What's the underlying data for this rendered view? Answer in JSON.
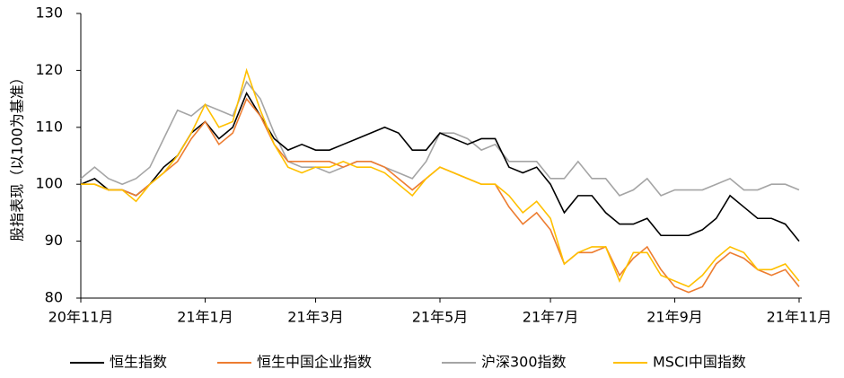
{
  "chart_data": {
    "type": "line",
    "y_label": "股指表现（以100为基准）",
    "categories": [
      "20年11月",
      null,
      null,
      null,
      null,
      null,
      null,
      null,
      null,
      "21年1月",
      null,
      null,
      null,
      null,
      null,
      null,
      null,
      "21年3月",
      null,
      null,
      null,
      null,
      null,
      null,
      null,
      null,
      "21年5月",
      null,
      null,
      null,
      null,
      null,
      null,
      null,
      "21年7月",
      null,
      null,
      null,
      null,
      null,
      null,
      null,
      null,
      "21年9月",
      null,
      null,
      null,
      null,
      null,
      null,
      null,
      null,
      "21年11月"
    ],
    "series": [
      {
        "name": "恒生指数",
        "color": "#000000",
        "values": [
          100,
          101,
          99,
          99,
          98,
          100,
          103,
          105,
          109,
          111,
          108,
          110,
          116,
          112,
          108,
          106,
          107,
          106,
          106,
          107,
          108,
          109,
          110,
          109,
          106,
          106,
          109,
          108,
          107,
          108,
          108,
          103,
          102,
          103,
          100,
          95,
          98,
          98,
          95,
          93,
          93,
          94,
          91,
          91,
          91,
          92,
          94,
          98,
          96,
          94,
          94,
          93,
          90
        ]
      },
      {
        "name": "恒生中国企业指数",
        "color": "#ed7d31",
        "values": [
          100,
          100,
          99,
          99,
          98,
          100,
          102,
          104,
          108,
          111,
          107,
          109,
          115,
          112,
          107,
          104,
          104,
          104,
          104,
          103,
          104,
          104,
          103,
          101,
          99,
          101,
          103,
          102,
          101,
          100,
          100,
          96,
          93,
          95,
          92,
          86,
          88,
          88,
          89,
          84,
          87,
          89,
          85,
          82,
          81,
          82,
          86,
          88,
          87,
          85,
          84,
          85,
          82
        ]
      },
      {
        "name": "沪深300指数",
        "color": "#a5a5a5",
        "values": [
          101,
          103,
          101,
          100,
          101,
          103,
          108,
          113,
          112,
          114,
          113,
          112,
          118,
          115,
          109,
          104,
          103,
          103,
          102,
          103,
          104,
          104,
          103,
          102,
          101,
          104,
          109,
          109,
          108,
          106,
          107,
          104,
          104,
          104,
          101,
          101,
          104,
          101,
          101,
          98,
          99,
          101,
          98,
          99,
          99,
          99,
          100,
          101,
          99,
          99,
          100,
          100,
          99
        ]
      },
      {
        "name": "MSCI中国指数",
        "color": "#ffc000",
        "values": [
          100,
          100,
          99,
          99,
          97,
          100,
          102,
          105,
          109,
          114,
          110,
          111,
          120,
          113,
          107,
          103,
          102,
          103,
          103,
          104,
          103,
          103,
          102,
          100,
          98,
          101,
          103,
          102,
          101,
          100,
          100,
          98,
          95,
          97,
          94,
          86,
          88,
          89,
          89,
          83,
          88,
          88,
          84,
          83,
          82,
          84,
          87,
          89,
          88,
          85,
          85,
          86,
          83
        ]
      }
    ],
    "ylim": [
      80,
      130
    ],
    "yticks": [
      80,
      90,
      100,
      110,
      120,
      130
    ],
    "grid": false
  }
}
